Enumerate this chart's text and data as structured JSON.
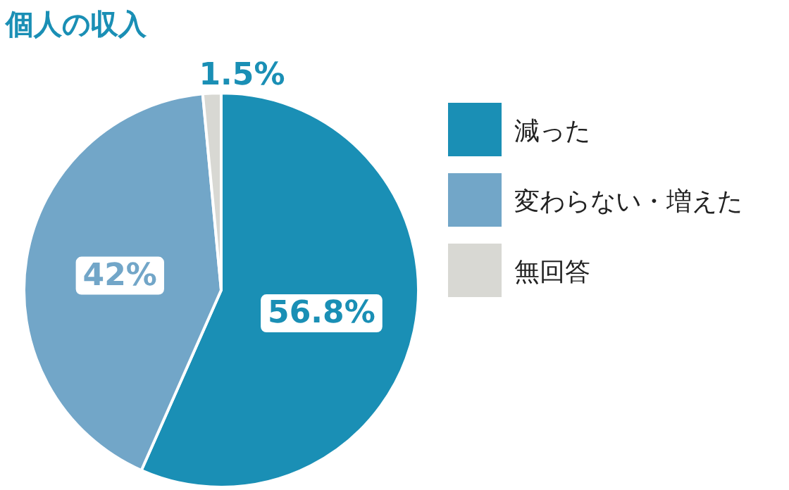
{
  "chart_data": {
    "type": "pie",
    "title": "個人の収入",
    "categories": [
      "減った",
      "変わらない・増えた",
      "無回答"
    ],
    "values": [
      56.8,
      42,
      1.5
    ],
    "value_labels": [
      "56.8%",
      "42%",
      "1.5%"
    ],
    "colors": [
      "#1a8fb5",
      "#72a6c8",
      "#d8d8d3"
    ],
    "legend": "right"
  }
}
